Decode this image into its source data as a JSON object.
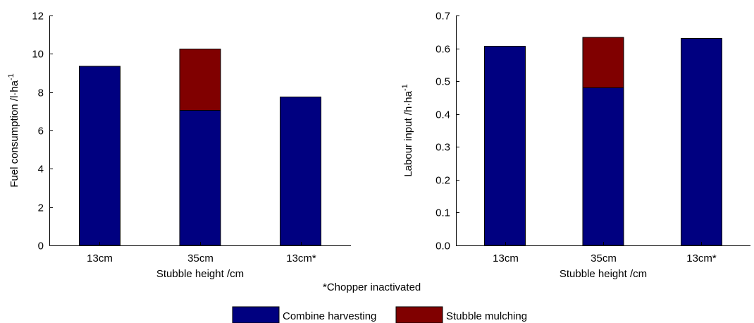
{
  "footnote": "*Chopper inactivated",
  "legend": [
    {
      "label": "Combine harvesting",
      "color": "#000080"
    },
    {
      "label": "Stubble mulching",
      "color": "#800000"
    }
  ],
  "chart_data": [
    {
      "type": "bar",
      "stacked": true,
      "categories": [
        "13cm",
        "35cm",
        "13cm*"
      ],
      "xlabel": "Stubble height /cm",
      "ylabel": "Fuel consumption /l·ha",
      "ylabel_sup": "-1",
      "ylim": [
        0,
        12
      ],
      "yticks": [
        0,
        2,
        4,
        6,
        8,
        10,
        12
      ],
      "ytick_decimals": 0,
      "series": [
        {
          "name": "Combine harvesting",
          "color": "#000080",
          "values": [
            9.35,
            7.05,
            7.75
          ]
        },
        {
          "name": "Stubble mulching",
          "color": "#800000",
          "values": [
            0,
            3.2,
            0
          ]
        }
      ]
    },
    {
      "type": "bar",
      "stacked": true,
      "categories": [
        "13cm",
        "35cm",
        "13cm*"
      ],
      "xlabel": "Stubble height /cm",
      "ylabel": "Labour input /h·ha",
      "ylabel_sup": "-1",
      "ylim": [
        0,
        0.7
      ],
      "yticks": [
        0,
        0.1,
        0.2,
        0.3,
        0.4,
        0.5,
        0.6,
        0.7
      ],
      "ytick_decimals": 1,
      "series": [
        {
          "name": "Combine harvesting",
          "color": "#000080",
          "values": [
            0.607,
            0.48,
            0.63
          ]
        },
        {
          "name": "Stubble mulching",
          "color": "#800000",
          "values": [
            0,
            0.153,
            0
          ]
        }
      ]
    }
  ]
}
